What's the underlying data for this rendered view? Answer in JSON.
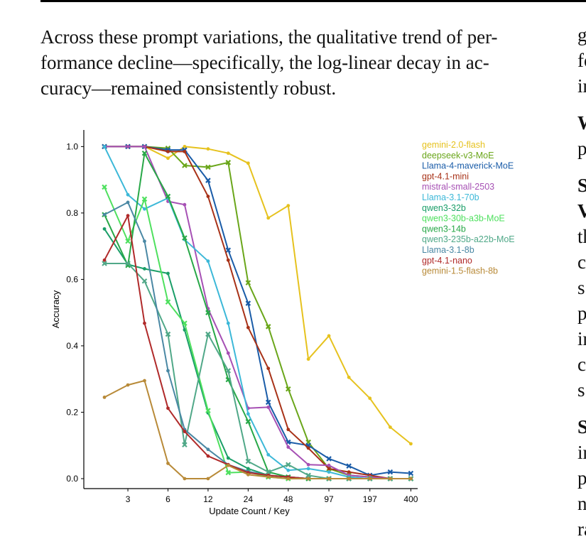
{
  "paragraph": {
    "lines": [
      "Across these prompt variations, the qualitative trend of per-",
      "formance decline—specifically, the log-linear decay in ac-",
      "curacy—remained consistently robust."
    ]
  },
  "right_column": {
    "fragments": [
      {
        "text": "g",
        "bold": false
      },
      {
        "text": "fo",
        "bold": false
      },
      {
        "text": "in",
        "bold": false
      },
      {
        "text": "W",
        "bold": true
      },
      {
        "text": "p",
        "bold": false
      },
      {
        "text": "S",
        "bold": true
      },
      {
        "text": "V",
        "bold": true
      },
      {
        "text": "th",
        "bold": false
      },
      {
        "text": "c",
        "bold": false
      },
      {
        "text": "s",
        "bold": false
      },
      {
        "text": "p",
        "bold": false
      },
      {
        "text": "in",
        "bold": false
      },
      {
        "text": "c",
        "bold": false
      },
      {
        "text": "s",
        "bold": false
      },
      {
        "text": "S",
        "bold": true
      },
      {
        "text": "in",
        "bold": false
      },
      {
        "text": "p",
        "bold": false
      },
      {
        "text": "n",
        "bold": false
      },
      {
        "text": "ra",
        "bold": false
      }
    ]
  },
  "chart_data": {
    "type": "line",
    "title": "",
    "xlabel": "Update Count / Key",
    "ylabel": "Accuracy",
    "x_scale": "log",
    "xlim": [
      1.4,
      450
    ],
    "ylim": [
      -0.03,
      1.05
    ],
    "xticks": [
      3,
      6,
      12,
      24,
      48,
      97,
      197,
      400
    ],
    "yticks": [
      0.0,
      0.2,
      0.4,
      0.6,
      0.8,
      1.0
    ],
    "ytick_labels": [
      "0.0",
      "0.2",
      "0.4",
      "0.6",
      "0.8",
      "1.0"
    ],
    "grid": false,
    "legend": "right",
    "x": [
      2,
      3,
      4,
      6,
      8,
      12,
      17,
      24,
      34,
      48,
      68,
      97,
      137,
      197,
      280,
      400
    ],
    "series": [
      {
        "name": "gemini-2.0-flash",
        "color": "#e6c21e",
        "marker": "dot",
        "values": [
          1.0,
          1.0,
          1.0,
          0.965,
          1.0,
          0.993,
          0.98,
          0.95,
          0.785,
          0.822,
          0.36,
          0.43,
          0.305,
          0.242,
          0.155,
          0.105
        ]
      },
      {
        "name": "deepseek-v3-MoE",
        "color": "#6aa61a",
        "marker": "x",
        "values": [
          1.0,
          1.0,
          1.0,
          0.995,
          0.943,
          0.938,
          0.952,
          0.59,
          0.458,
          0.27,
          0.11,
          0.03,
          0.01,
          0.005,
          0.0,
          0.0
        ]
      },
      {
        "name": "Llama-4-maverick-MoE",
        "color": "#1a5ca8",
        "marker": "x",
        "values": [
          1.0,
          1.0,
          1.0,
          0.99,
          0.99,
          0.898,
          0.688,
          0.528,
          0.23,
          0.11,
          0.1,
          0.06,
          0.038,
          0.01,
          0.02,
          0.016
        ]
      },
      {
        "name": "gpt-4.1-mini",
        "color": "#a83218",
        "marker": "dot",
        "values": [
          1.0,
          1.0,
          1.0,
          0.985,
          0.985,
          0.85,
          0.658,
          0.455,
          0.332,
          0.148,
          0.092,
          0.03,
          0.02,
          0.01,
          0.0,
          0.0
        ]
      },
      {
        "name": "mistral-small-2503",
        "color": "#a650b4",
        "marker": "dot",
        "values": [
          1.0,
          1.0,
          1.0,
          0.835,
          0.825,
          0.512,
          0.378,
          0.212,
          0.215,
          0.095,
          0.042,
          0.04,
          0.01,
          0.005,
          0.0,
          0.0
        ]
      },
      {
        "name": "Llama-3.1-70b",
        "color": "#3cb8d8",
        "marker": "dot",
        "values": [
          1.0,
          0.855,
          0.812,
          0.845,
          0.72,
          0.655,
          0.468,
          0.195,
          0.072,
          0.025,
          0.03,
          0.02,
          0.005,
          0.0,
          0.0,
          0.0
        ]
      },
      {
        "name": "qwen3-32b",
        "color": "#1a9e68",
        "marker": "dot",
        "values": [
          0.752,
          0.645,
          0.632,
          0.618,
          0.448,
          0.198,
          0.062,
          0.03,
          0.01,
          0.005,
          0.0,
          0.0,
          0.0,
          0.0,
          0.0,
          0.0
        ]
      },
      {
        "name": "qwen3-30b-a3b-MoE",
        "color": "#4ee05e",
        "marker": "x",
        "values": [
          0.878,
          0.715,
          0.842,
          0.532,
          0.468,
          0.205,
          0.018,
          0.02,
          0.005,
          0.0,
          0.0,
          0.0,
          0.0,
          0.0,
          0.0,
          0.0
        ]
      },
      {
        "name": "qwen3-14b",
        "color": "#28a848",
        "marker": "x",
        "values": [
          0.795,
          0.642,
          0.98,
          0.85,
          0.725,
          0.5,
          0.298,
          0.172,
          0.02,
          0.005,
          0.0,
          0.0,
          0.0,
          0.0,
          0.0,
          0.0
        ]
      },
      {
        "name": "qwen3-235b-a22b-MoE",
        "color": "#50a888",
        "marker": "x",
        "values": [
          0.648,
          0.648,
          0.595,
          0.435,
          0.102,
          0.435,
          0.325,
          0.052,
          0.02,
          0.042,
          0.01,
          0.0,
          0.0,
          0.0,
          0.0,
          0.0
        ]
      },
      {
        "name": "Llama-3.1-8b",
        "color": "#4a88a4",
        "marker": "dot",
        "values": [
          0.795,
          0.832,
          0.715,
          0.325,
          0.148,
          0.088,
          0.042,
          0.022,
          0.01,
          0.005,
          0.0,
          0.0,
          0.0,
          0.0,
          0.0,
          0.0
        ]
      },
      {
        "name": "gpt-4.1-nano",
        "color": "#b02a2a",
        "marker": "dot",
        "values": [
          0.658,
          0.792,
          0.468,
          0.212,
          0.142,
          0.068,
          0.042,
          0.018,
          0.01,
          0.005,
          0.0,
          0.0,
          0.0,
          0.0,
          0.0,
          0.0
        ]
      },
      {
        "name": "gemini-1.5-flash-8b",
        "color": "#b88a38",
        "marker": "dot",
        "values": [
          0.245,
          0.282,
          0.295,
          0.046,
          0.0,
          0.0,
          0.04,
          0.012,
          0.005,
          0.0,
          0.0,
          0.0,
          0.0,
          0.0,
          0.0,
          0.0
        ]
      }
    ]
  }
}
